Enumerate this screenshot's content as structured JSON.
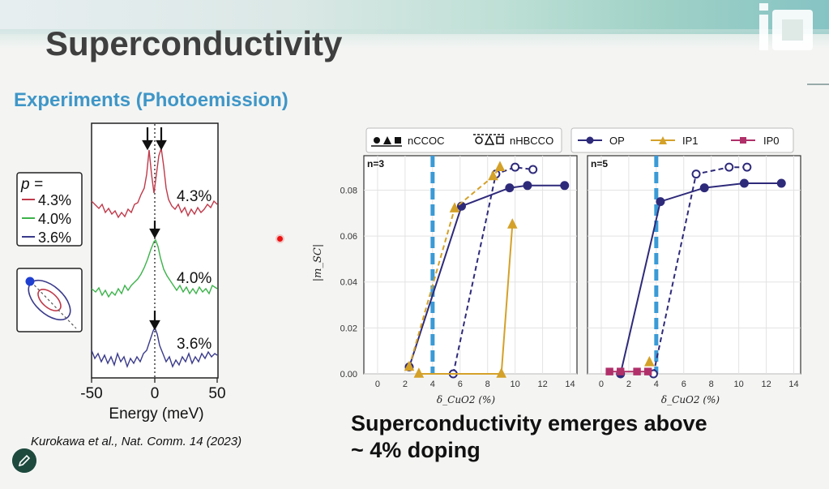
{
  "slide": {
    "title": "Superconductivity",
    "subtitle": "Experiments (Photoemission)",
    "caption": "Kurokawa et al., Nat. Comm. 14 (2023)",
    "takeaway_line1": "Superconductivity emerges above",
    "takeaway_line2": "~ 4% doping",
    "logo_text": "IO"
  },
  "spectra": {
    "legend_title": "p =",
    "traces": [
      {
        "label": "4.3%",
        "color": "#c0394a"
      },
      {
        "label": "4.0%",
        "color": "#3cb34b"
      },
      {
        "label": "3.6%",
        "color": "#3a3a8c"
      }
    ],
    "xlabel": "Energy (meV)",
    "xticks": [
      "-50",
      "0",
      "50"
    ]
  },
  "chart_data": [
    {
      "type": "line",
      "panel_label": "n=3",
      "xlabel": "δ_CuO2 (%)",
      "ylabel": "|m_SC|",
      "xlim": [
        -1,
        14.5
      ],
      "ylim": [
        0,
        0.095
      ],
      "xticks": [
        0,
        2,
        4,
        6,
        8,
        10,
        12,
        14
      ],
      "yticks": [
        "0.00",
        "0.02",
        "0.04",
        "0.06",
        "0.08"
      ],
      "threshold": 4,
      "series": [
        {
          "name": "OP nCCOC",
          "color": "#2e2a7a",
          "dash": false,
          "marker": "circle",
          "fill": true,
          "x": [
            2.3,
            6.1,
            9.6,
            10.9,
            13.6
          ],
          "y": [
            0.003,
            0.073,
            0.081,
            0.082,
            0.082
          ]
        },
        {
          "name": "OP nHBCCO",
          "color": "#2e2a7a",
          "dash": true,
          "marker": "circle",
          "fill": false,
          "x": [
            5.5,
            8.6,
            10.0,
            11.3
          ],
          "y": [
            0.0,
            0.087,
            0.09,
            0.089
          ]
        },
        {
          "name": "IP1 nCCOC",
          "color": "#d4a129",
          "dash": true,
          "marker": "triangle",
          "fill": true,
          "x": [
            2.3,
            5.6,
            8.4,
            8.9
          ],
          "y": [
            0.003,
            0.072,
            0.086,
            0.09
          ]
        },
        {
          "name": "IP1 nHBCCO",
          "color": "#d4a129",
          "dash": false,
          "marker": "triangle",
          "fill": true,
          "x": [
            3.0,
            9.0,
            9.8
          ],
          "y": [
            0.0,
            0.0,
            0.065
          ]
        }
      ]
    },
    {
      "type": "line",
      "panel_label": "n=5",
      "xlabel": "δ_CuO2 (%)",
      "ylabel": "",
      "xlim": [
        -1,
        14.5
      ],
      "ylim": [
        0,
        0.095
      ],
      "xticks": [
        0,
        2,
        4,
        6,
        8,
        10,
        12,
        14
      ],
      "threshold": 4,
      "series": [
        {
          "name": "OP nCCOC",
          "color": "#2e2a7a",
          "dash": false,
          "marker": "circle",
          "fill": true,
          "x": [
            1.4,
            4.3,
            7.5,
            10.4,
            13.1
          ],
          "y": [
            0.0,
            0.075,
            0.081,
            0.083,
            0.083
          ]
        },
        {
          "name": "OP nHBCCO",
          "color": "#2e2a7a",
          "dash": true,
          "marker": "circle",
          "fill": false,
          "x": [
            3.8,
            6.9,
            9.3,
            10.6
          ],
          "y": [
            0.0,
            0.087,
            0.09,
            0.09
          ]
        },
        {
          "name": "IP0 nCCOC",
          "color": "#b0306a",
          "dash": false,
          "marker": "square",
          "fill": true,
          "x": [
            0.6,
            1.4,
            2.6,
            3.4
          ],
          "y": [
            0.001,
            0.001,
            0.001,
            0.001
          ]
        },
        {
          "name": "IP1 nCCOC",
          "color": "#d4a129",
          "dash": false,
          "marker": "triangle",
          "fill": true,
          "x": [
            3.5
          ],
          "y": [
            0.005
          ]
        }
      ]
    }
  ],
  "chart_legend": {
    "family": [
      {
        "label": "nCCOC"
      },
      {
        "label": "nHBCCO"
      }
    ],
    "layers": [
      {
        "label": "OP",
        "color": "#2e2a7a",
        "marker": "circle"
      },
      {
        "label": "IP1",
        "color": "#d4a129",
        "marker": "triangle"
      },
      {
        "label": "IP0",
        "color": "#b0306a",
        "marker": "square"
      }
    ]
  }
}
